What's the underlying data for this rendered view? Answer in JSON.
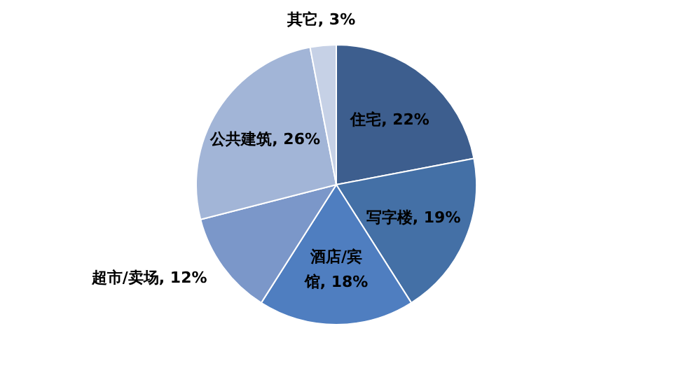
{
  "chart_data": {
    "type": "pie",
    "categories": [
      "住宅",
      "写字楼",
      "酒店/宾馆",
      "超市/卖场",
      "公共建筑",
      "其它"
    ],
    "values": [
      22,
      19,
      18,
      12,
      26,
      3
    ],
    "colors": [
      "#3d5e8e",
      "#4470a6",
      "#4f7ec0",
      "#7b97c9",
      "#a2b5d7",
      "#c6d1e6"
    ],
    "value_labels": [
      "22%",
      "19%",
      "18%",
      "12%",
      "26%",
      "3%"
    ],
    "legend": false
  }
}
